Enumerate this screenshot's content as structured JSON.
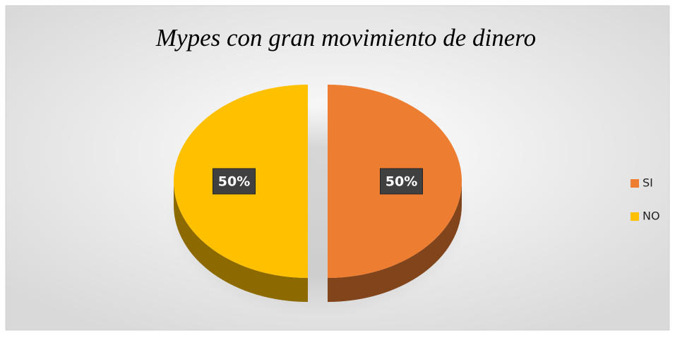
{
  "chart_data": {
    "type": "pie",
    "title": "Mypes con gran movimiento de dinero",
    "categories": [
      "SI",
      "NO"
    ],
    "values": [
      50,
      50
    ],
    "value_labels": [
      "50%",
      "50%"
    ],
    "colors": [
      "#ED7D31",
      "#FFC000"
    ],
    "legend": "right"
  }
}
